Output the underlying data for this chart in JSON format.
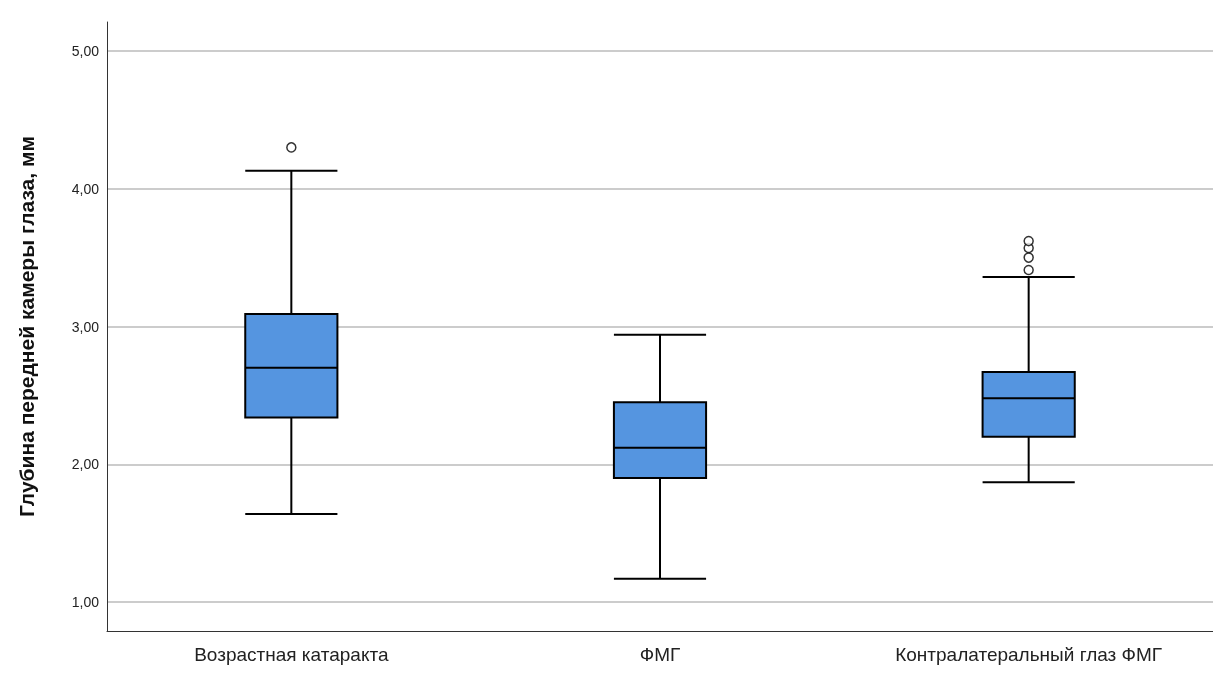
{
  "chart_data": {
    "type": "box",
    "ylabel": "Глубина передней камеры глаза, мм",
    "categories": [
      "Возрастная катаракта",
      "ФМГ",
      "Контралатеральный глаз ФМГ"
    ],
    "color": "#5595e0",
    "boxes": [
      {
        "low": 1.64,
        "q1": 2.34,
        "median": 2.7,
        "q3": 3.09,
        "high": 4.13,
        "outliers": [
          4.3
        ]
      },
      {
        "low": 1.17,
        "q1": 1.9,
        "median": 2.12,
        "q3": 2.45,
        "high": 2.94
      },
      {
        "low": 1.87,
        "q1": 2.2,
        "median": 2.48,
        "q3": 2.67,
        "high": 3.36,
        "outliers": [
          3.41,
          3.5,
          3.57,
          3.62
        ]
      }
    ],
    "ylim": [
      0.79,
      5.21
    ],
    "yticks": [
      {
        "value": 1,
        "label": "1,00"
      },
      {
        "value": 2,
        "label": "2,00"
      },
      {
        "value": 3,
        "label": "3,00"
      },
      {
        "value": 4,
        "label": "4,00"
      },
      {
        "value": 5,
        "label": "5,00"
      }
    ],
    "grid": "y"
  }
}
